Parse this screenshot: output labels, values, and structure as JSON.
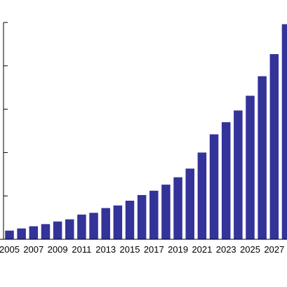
{
  "chart_data": {
    "type": "bar",
    "title": "",
    "xlabel": "",
    "ylabel": "",
    "categories": [
      "2005",
      "2006",
      "2007",
      "2008",
      "2009",
      "2010",
      "2011",
      "2012",
      "2013",
      "2014",
      "2015",
      "2016",
      "2017",
      "2018",
      "2019",
      "2020",
      "2021",
      "2022",
      "2023",
      "2024",
      "2025",
      "2026",
      "2027",
      "2028"
    ],
    "values": [
      2,
      2.5,
      3,
      3.5,
      4.1,
      4.6,
      5.7,
      6.1,
      7.2,
      7.8,
      8.9,
      10.2,
      11.2,
      12.6,
      14.3,
      16.3,
      20,
      24.2,
      27,
      29.7,
      33.1,
      37.6,
      42.7,
      49.6
    ],
    "x_tick_labels": [
      "2005",
      "2007",
      "2009",
      "2011",
      "2013",
      "2015",
      "2017",
      "2019",
      "2021",
      "2023",
      "2025",
      "2027"
    ],
    "ylim": [
      0,
      50
    ],
    "y_tick_values": [
      10,
      20,
      30,
      40,
      50
    ],
    "bar_color": "#333399",
    "grid": false,
    "legend": "none"
  }
}
